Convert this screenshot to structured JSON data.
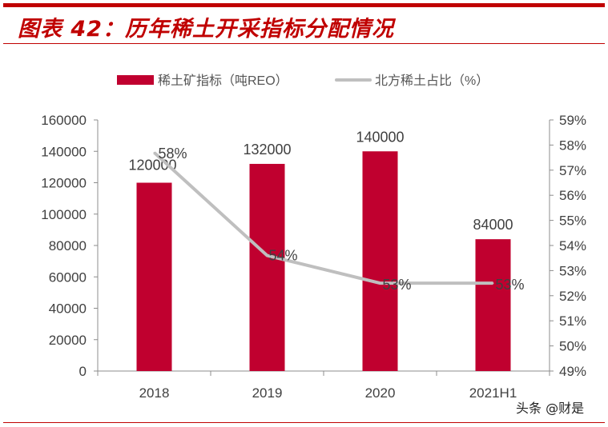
{
  "title": "图表 42：历年稀土开采指标分配情况",
  "watermark": "头条 @财是",
  "colors": {
    "bar": "#c0002f",
    "line": "#bfbfbf",
    "accent": "#c00000"
  },
  "chart_data": {
    "type": "bar+line",
    "categories": [
      "2018",
      "2019",
      "2020",
      "2021H1"
    ],
    "series": [
      {
        "name": "稀土矿指标（吨REO）",
        "type": "bar",
        "axis": "left",
        "values": [
          120000,
          132000,
          140000,
          84000
        ],
        "labels": [
          "120000",
          "132000",
          "140000",
          "84000"
        ]
      },
      {
        "name": "北方稀土占比（%）",
        "type": "line",
        "axis": "right",
        "values": [
          57.7,
          53.6,
          52.5,
          52.5
        ],
        "labels": [
          "58%",
          "54%",
          "53%",
          "53%"
        ]
      }
    ],
    "left_axis": {
      "ylim": [
        0,
        160000
      ],
      "ticks": [
        "0",
        "20000",
        "40000",
        "60000",
        "80000",
        "100000",
        "120000",
        "140000",
        "160000"
      ]
    },
    "right_axis": {
      "ylim": [
        49,
        59
      ],
      "ticks": [
        "49%",
        "50%",
        "51%",
        "52%",
        "53%",
        "54%",
        "55%",
        "56%",
        "57%",
        "58%",
        "59%"
      ]
    },
    "legend_placement": "top",
    "grid": false
  }
}
